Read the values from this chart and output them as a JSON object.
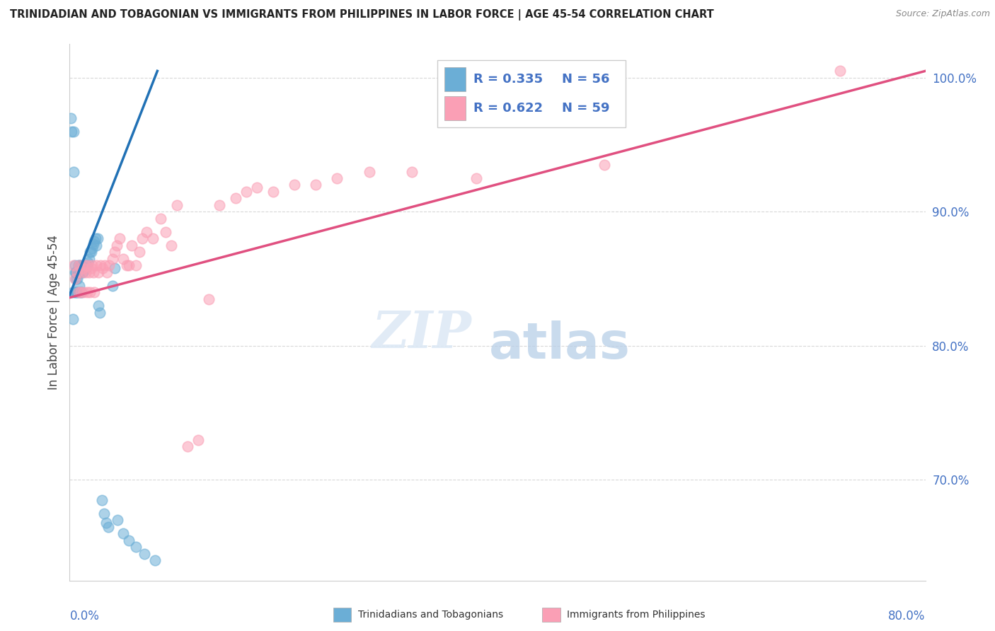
{
  "title": "TRINIDADIAN AND TOBAGONIAN VS IMMIGRANTS FROM PHILIPPINES IN LABOR FORCE | AGE 45-54 CORRELATION CHART",
  "source": "Source: ZipAtlas.com",
  "ylabel_label": "In Labor Force | Age 45-54",
  "right_yticks": [
    0.7,
    0.8,
    0.9,
    1.0
  ],
  "right_yticklabels": [
    "70.0%",
    "80.0%",
    "90.0%",
    "100.0%"
  ],
  "xmin": 0.0,
  "xmax": 0.8,
  "ymin": 0.625,
  "ymax": 1.025,
  "legend_blue_R": "R = 0.335",
  "legend_blue_N": "N = 56",
  "legend_pink_R": "R = 0.622",
  "legend_pink_N": "N = 59",
  "blue_color": "#6baed6",
  "pink_color": "#fa9fb5",
  "blue_line_color": "#2171b5",
  "pink_line_color": "#e05080",
  "legend_label_blue": "Trinidadians and Tobagonians",
  "legend_label_pink": "Immigrants from Philippines",
  "blue_line_x0": 0.0,
  "blue_line_y0": 0.838,
  "blue_line_x1": 0.082,
  "blue_line_y1": 1.005,
  "pink_line_x0": 0.0,
  "pink_line_y0": 0.836,
  "pink_line_x1": 0.8,
  "pink_line_y1": 1.005,
  "blue_scatter_x": [
    0.001,
    0.002,
    0.003,
    0.003,
    0.004,
    0.004,
    0.005,
    0.005,
    0.005,
    0.006,
    0.006,
    0.006,
    0.007,
    0.007,
    0.007,
    0.007,
    0.008,
    0.008,
    0.008,
    0.009,
    0.009,
    0.009,
    0.01,
    0.01,
    0.01,
    0.011,
    0.011,
    0.012,
    0.013,
    0.014,
    0.015,
    0.016,
    0.017,
    0.018,
    0.019,
    0.02,
    0.021,
    0.022,
    0.023,
    0.024,
    0.025,
    0.026,
    0.027,
    0.028,
    0.03,
    0.032,
    0.034,
    0.036,
    0.04,
    0.042,
    0.045,
    0.05,
    0.055,
    0.062,
    0.07,
    0.08
  ],
  "blue_scatter_y": [
    0.97,
    0.96,
    0.84,
    0.82,
    0.96,
    0.93,
    0.86,
    0.855,
    0.84,
    0.855,
    0.85,
    0.84,
    0.855,
    0.855,
    0.85,
    0.84,
    0.86,
    0.855,
    0.84,
    0.86,
    0.855,
    0.845,
    0.86,
    0.855,
    0.84,
    0.855,
    0.84,
    0.855,
    0.856,
    0.858,
    0.858,
    0.86,
    0.862,
    0.865,
    0.87,
    0.87,
    0.873,
    0.876,
    0.878,
    0.88,
    0.875,
    0.88,
    0.83,
    0.825,
    0.685,
    0.675,
    0.668,
    0.665,
    0.845,
    0.858,
    0.67,
    0.66,
    0.655,
    0.65,
    0.645,
    0.64
  ],
  "pink_scatter_x": [
    0.004,
    0.005,
    0.007,
    0.008,
    0.009,
    0.01,
    0.011,
    0.012,
    0.013,
    0.014,
    0.015,
    0.016,
    0.017,
    0.018,
    0.019,
    0.02,
    0.021,
    0.022,
    0.023,
    0.025,
    0.027,
    0.029,
    0.031,
    0.033,
    0.035,
    0.037,
    0.04,
    0.042,
    0.044,
    0.047,
    0.05,
    0.053,
    0.055,
    0.058,
    0.062,
    0.065,
    0.068,
    0.072,
    0.078,
    0.085,
    0.09,
    0.095,
    0.1,
    0.11,
    0.12,
    0.13,
    0.14,
    0.155,
    0.165,
    0.175,
    0.19,
    0.21,
    0.23,
    0.25,
    0.28,
    0.32,
    0.38,
    0.5,
    0.72
  ],
  "pink_scatter_y": [
    0.86,
    0.85,
    0.855,
    0.84,
    0.86,
    0.84,
    0.855,
    0.858,
    0.84,
    0.86,
    0.855,
    0.84,
    0.86,
    0.855,
    0.84,
    0.858,
    0.86,
    0.855,
    0.84,
    0.86,
    0.855,
    0.86,
    0.858,
    0.86,
    0.855,
    0.86,
    0.865,
    0.87,
    0.875,
    0.88,
    0.865,
    0.86,
    0.86,
    0.875,
    0.86,
    0.87,
    0.88,
    0.885,
    0.88,
    0.895,
    0.885,
    0.875,
    0.905,
    0.725,
    0.73,
    0.835,
    0.905,
    0.91,
    0.915,
    0.918,
    0.915,
    0.92,
    0.92,
    0.925,
    0.93,
    0.93,
    0.925,
    0.935,
    1.005
  ],
  "watermark_zip": "ZIP",
  "watermark_atlas": "atlas",
  "grid_color": "#d8d8d8"
}
